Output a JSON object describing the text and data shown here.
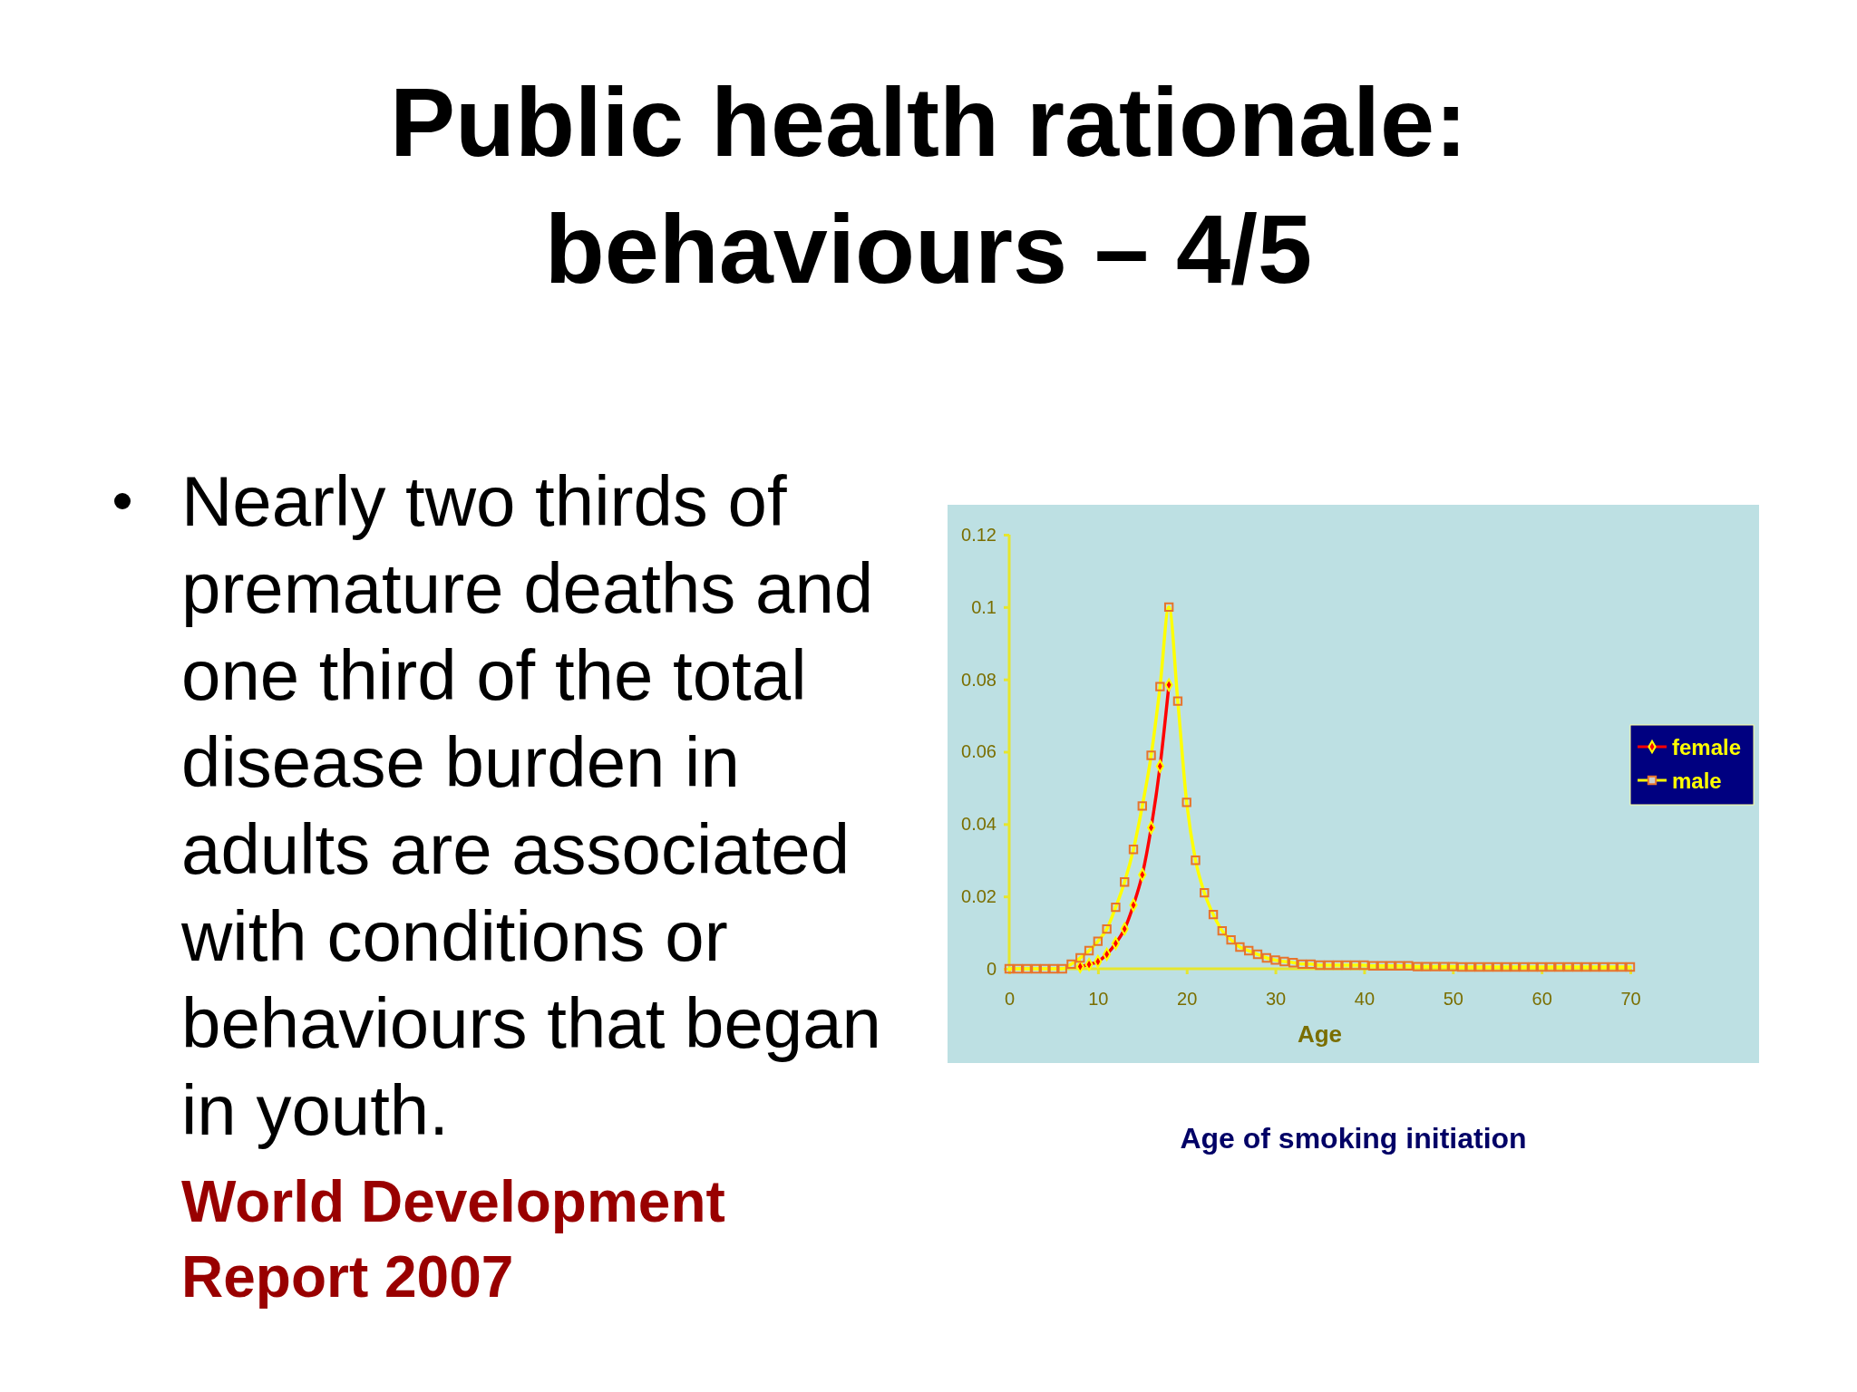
{
  "chart_data": {
    "type": "line",
    "title": "Public health rationale: behaviours – 4/5",
    "xlabel": "Age",
    "annotations": [
      "Nearly two thirds of premature deaths and one third of the total disease burden in adults are associated with conditions or behaviours that began in youth.",
      "World Development Report 2007",
      "Age of smoking initiation"
    ],
    "xlim": [
      0,
      70
    ],
    "xticks": [
      0,
      10,
      20,
      30,
      40,
      50,
      60,
      70
    ],
    "ylim": [
      0,
      0.12
    ],
    "yticks": [
      0,
      0.02,
      0.04,
      0.06,
      0.08,
      0.1,
      0.12
    ],
    "grid": false,
    "legend": "right",
    "line_style": "solid",
    "series": [
      {
        "name": "female",
        "color": "#ff0000",
        "marker": "diamond",
        "x": [
          8,
          9,
          10,
          11,
          12,
          13,
          14,
          15,
          16,
          17,
          18
        ],
        "values": [
          0.0006,
          0.0012,
          0.002,
          0.004,
          0.007,
          0.011,
          0.0176,
          0.026,
          0.039,
          0.056,
          0.0785
        ]
      },
      {
        "name": "male",
        "color": "#ffff00",
        "marker": "square",
        "x": [
          0,
          1,
          2,
          3,
          4,
          5,
          6,
          7,
          8,
          9,
          10,
          11,
          12,
          13,
          14,
          15,
          16,
          17,
          18,
          19,
          20,
          21,
          22,
          23,
          24,
          25,
          26,
          27,
          28,
          29,
          30,
          31,
          32,
          33,
          34,
          35,
          36,
          37,
          38,
          39,
          40,
          41,
          42,
          43,
          44,
          45,
          46,
          47,
          48,
          49,
          50,
          51,
          52,
          53,
          54,
          55,
          56,
          57,
          58,
          59,
          60,
          61,
          62,
          63,
          64,
          65,
          66,
          67,
          68,
          69,
          70
        ],
        "values": [
          0,
          0,
          0,
          0,
          0,
          0,
          0,
          0.0013,
          0.003,
          0.005,
          0.0076,
          0.011,
          0.017,
          0.024,
          0.033,
          0.045,
          0.059,
          0.078,
          0.1,
          0.074,
          0.046,
          0.03,
          0.021,
          0.015,
          0.0105,
          0.008,
          0.006,
          0.005,
          0.004,
          0.003,
          0.0024,
          0.002,
          0.0017,
          0.0013,
          0.0013,
          0.001,
          0.001,
          0.001,
          0.001,
          0.001,
          0.001,
          0.0008,
          0.0008,
          0.0008,
          0.0008,
          0.0008,
          0.0006,
          0.0006,
          0.0006,
          0.0006,
          0.0006,
          0.0005,
          0.0005,
          0.0005,
          0.0005,
          0.0005,
          0.0005,
          0.0005,
          0.0005,
          0.0005,
          0.0005,
          0.0005,
          0.0005,
          0.0005,
          0.0005,
          0.0005,
          0.0005,
          0.0005,
          0.0005,
          0.0005,
          0.0005
        ]
      }
    ]
  }
}
